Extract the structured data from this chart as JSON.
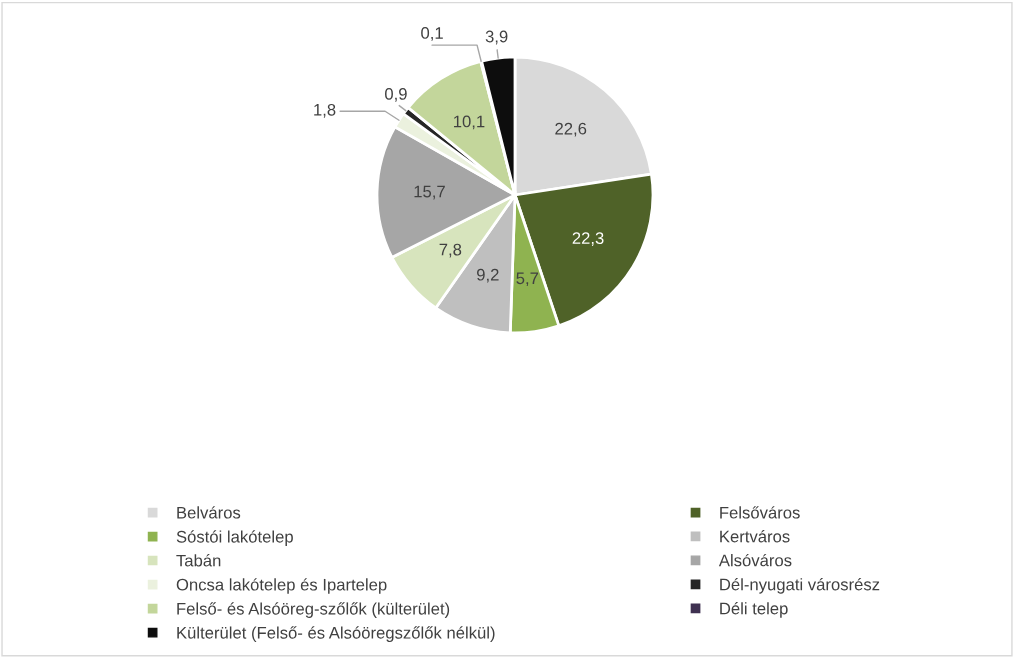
{
  "chart_data": {
    "type": "pie",
    "categories": [
      "Belváros",
      "Felsőváros",
      "Sóstói lakótelep",
      "Kertváros",
      "Tabán",
      "Alsóváros",
      "Oncsa lakótelep és Ipartelep",
      "Dél-nyugati városrész",
      "Felső- és Alsóöreg-szőlők (külterület)",
      "Déli telep",
      "Külterület (Felső- és Alsóöregszőlők nélkül)"
    ],
    "values": [
      22.6,
      22.3,
      5.7,
      9.2,
      7.8,
      15.7,
      1.8,
      0.9,
      10.1,
      0.1,
      3.9
    ],
    "value_labels": [
      "22,6",
      "22,3",
      "5,7",
      "9,2",
      "7,8",
      "15,7",
      "1,8",
      "0,9",
      "10,1",
      "0,1",
      "3,9"
    ],
    "colors": [
      "#d9d9d9",
      "#4f6228",
      "#8fb350",
      "#bfbfbf",
      "#d7e4bd",
      "#a6a6a6",
      "#ebf1de",
      "#262626",
      "#c3d69b",
      "#3f3151",
      "#0d0d0d"
    ],
    "legend": "bottom"
  }
}
